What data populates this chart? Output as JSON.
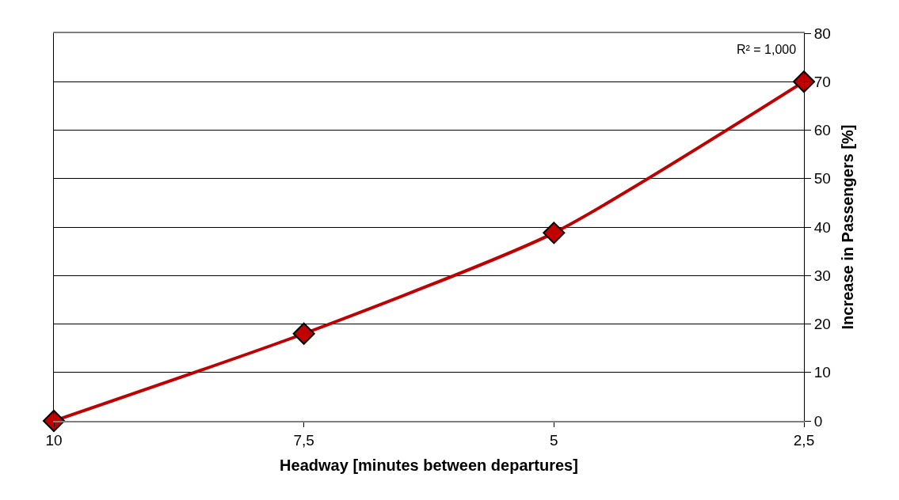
{
  "chart_data": {
    "type": "line",
    "xlabel": "Headway [minutes between departures]",
    "ylabel": "Increase in Passengers [%]",
    "x": [
      10,
      7.5,
      5,
      2.5
    ],
    "series": [
      {
        "color": "#c00000",
        "values": [
          0,
          18,
          38.8,
          70
        ]
      }
    ],
    "xlim": [
      10,
      2.5
    ],
    "xticks": [
      10,
      {
        "value": 7.5,
        "label": "7,5"
      },
      5,
      {
        "value": 2.5,
        "label": "2,5"
      }
    ],
    "ylim": [
      0,
      80
    ],
    "yticks": [
      0,
      10,
      20,
      30,
      40,
      50,
      60,
      70,
      80
    ],
    "annotations": [
      "R² = 1,000"
    ],
    "grid": "y",
    "marker": "diamond",
    "line_style": "solid"
  }
}
